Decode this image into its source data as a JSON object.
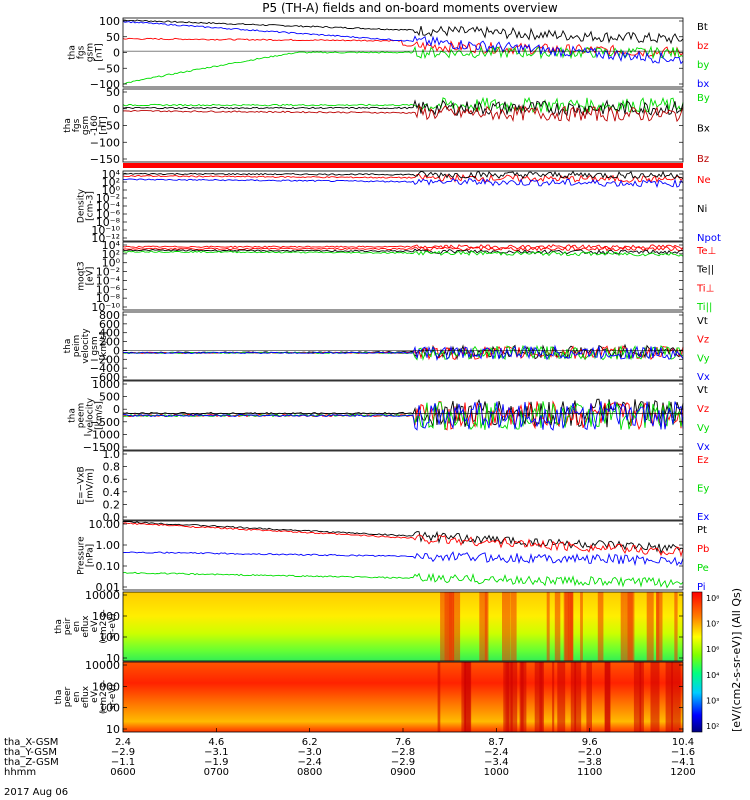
{
  "title": "P5 (TH-A) fields and on-board moments overview",
  "colors": {
    "black": "#000000",
    "red": "#ff0000",
    "green": "#00dd00",
    "blue": "#0000ff",
    "darkred": "#bb0000",
    "axis": "#000000"
  },
  "chart_data": [
    {
      "type": "line",
      "ylabel": [
        "tha",
        "fgs",
        "gsm",
        "[nT]"
      ],
      "yticks": [
        "100",
        "50",
        "0",
        "−50",
        "−100"
      ],
      "ylim": [
        -100,
        110
      ],
      "series": [
        {
          "name": "Bt",
          "color": "#000000"
        },
        {
          "name": "bz",
          "color": "#ff0000"
        },
        {
          "name": "by",
          "color": "#00dd00"
        },
        {
          "name": "bx",
          "color": "#0000ff"
        }
      ]
    },
    {
      "type": "line",
      "ylabel": [
        "tha",
        "fgs",
        "gsm",
        "-160",
        "[nT]"
      ],
      "yticks": [
        "50",
        "0",
        "−50",
        "−100",
        "−150"
      ],
      "ylim": [
        -180,
        60
      ],
      "series": [
        {
          "name": "By",
          "color": "#00dd00"
        },
        {
          "name": "Bx",
          "color": "#000000"
        },
        {
          "name": "Bz",
          "color": "#bb0000"
        }
      ]
    },
    {
      "type": "line",
      "ylabel": [
        "Density",
        "[cm-3]"
      ],
      "yticks": [
        "10⁴",
        "10²",
        "10⁰",
        "10⁻²",
        "10⁻⁴",
        "10⁻⁶",
        "10⁻⁸",
        "10⁻¹⁰",
        "10⁻¹²"
      ],
      "ylog": true,
      "series": [
        {
          "name": "Ne",
          "color": "#ff0000"
        },
        {
          "name": "Ni",
          "color": "#000000"
        },
        {
          "name": "Npot",
          "color": "#0000ff"
        }
      ]
    },
    {
      "type": "line",
      "ylabel": [
        "moqt3",
        "[eV]"
      ],
      "yticks": [
        "10⁴",
        "10²",
        "10⁰",
        "10⁻²",
        "10⁻⁴",
        "10⁻⁶",
        "10⁻⁸",
        "10⁻¹⁰"
      ],
      "ylog": true,
      "series": [
        {
          "name": "Te⊥",
          "color": "#ff0000"
        },
        {
          "name": "Te||",
          "color": "#000000"
        },
        {
          "name": "Ti⊥",
          "color": "#ff0000"
        },
        {
          "name": "Ti||",
          "color": "#00dd00"
        }
      ]
    },
    {
      "type": "line",
      "ylabel": [
        "tha",
        "peim",
        "velocity",
        "gsm",
        "[km/s]"
      ],
      "yticks": [
        "800",
        "600",
        "400",
        "200",
        "0",
        "−200",
        "−400",
        "−600"
      ],
      "ylim": [
        -600,
        800
      ],
      "series": [
        {
          "name": "Vt",
          "color": "#000000"
        },
        {
          "name": "Vz",
          "color": "#ff0000"
        },
        {
          "name": "Vy",
          "color": "#00dd00"
        },
        {
          "name": "Vx",
          "color": "#0000ff"
        }
      ]
    },
    {
      "type": "line",
      "ylabel": [
        "tha",
        "peem",
        "velocity",
        "[km/s]"
      ],
      "yticks": [
        "1000",
        "500",
        "0",
        "−500",
        "−1000",
        "−1500"
      ],
      "ylim": [
        -1500,
        1500
      ],
      "series": [
        {
          "name": "Vt",
          "color": "#000000"
        },
        {
          "name": "Vz",
          "color": "#ff0000"
        },
        {
          "name": "Vy",
          "color": "#00dd00"
        },
        {
          "name": "Vx",
          "color": "#0000ff"
        }
      ]
    },
    {
      "type": "line",
      "ylabel": [
        "E=−VxB",
        "[mV/m]"
      ],
      "yticks": [
        "1.0",
        "0.8",
        "0.6",
        "0.4",
        "0.2",
        "0.0"
      ],
      "ylim": [
        0,
        1
      ],
      "series": [
        {
          "name": "Ez",
          "color": "#ff0000"
        },
        {
          "name": "Ey",
          "color": "#00dd00"
        },
        {
          "name": "Ex",
          "color": "#0000ff"
        }
      ]
    },
    {
      "type": "line",
      "ylabel": [
        "Pressure",
        "[nPa]"
      ],
      "yticks": [
        "10.00",
        "1.00",
        "0.10",
        "0.01"
      ],
      "ylog": true,
      "series": [
        {
          "name": "Pt",
          "color": "#000000"
        },
        {
          "name": "Pb",
          "color": "#ff0000"
        },
        {
          "name": "Pe",
          "color": "#00dd00"
        },
        {
          "name": "Pi",
          "color": "#0000ff"
        }
      ]
    },
    {
      "type": "heatmap",
      "ylabel": [
        "tha",
        "peir",
        "en",
        "eflux",
        "eV",
        "(cm2-s-",
        "sr-eV)"
      ],
      "yticks": [
        "10000",
        "1000",
        "100",
        "10"
      ]
    },
    {
      "type": "heatmap",
      "ylabel": [
        "tha",
        "peer",
        "en",
        "eflux",
        "eV",
        "(cm2-s-",
        "sr-eV)"
      ],
      "yticks": [
        "10000",
        "1000",
        "100",
        "10"
      ]
    }
  ],
  "colorbar": {
    "label": "[eV/(cm2-s-sr-eV)] (All Qs)",
    "ticks": [
      "10⁸",
      "10⁷",
      "10⁶",
      "10⁴",
      "10³",
      "10²"
    ]
  },
  "x_axis": {
    "rows": [
      {
        "label": "tha_X-GSM",
        "values": [
          "2.4",
          "4.6",
          "6.2",
          "7.6",
          "8.7",
          "9.6",
          "10.4"
        ]
      },
      {
        "label": "tha_Y-GSM",
        "values": [
          "−2.9",
          "−3.1",
          "−3.0",
          "−2.8",
          "−2.4",
          "−2.0",
          "−1.6"
        ]
      },
      {
        "label": "tha_Z-GSM",
        "values": [
          "−1.1",
          "−1.9",
          "−2.4",
          "−2.9",
          "−3.4",
          "−3.8",
          "−4.1"
        ]
      },
      {
        "label": "hhmm",
        "values": [
          "0600",
          "0700",
          "0800",
          "0900",
          "1000",
          "1100",
          "1200"
        ]
      }
    ],
    "date": "2017 Aug 06"
  }
}
